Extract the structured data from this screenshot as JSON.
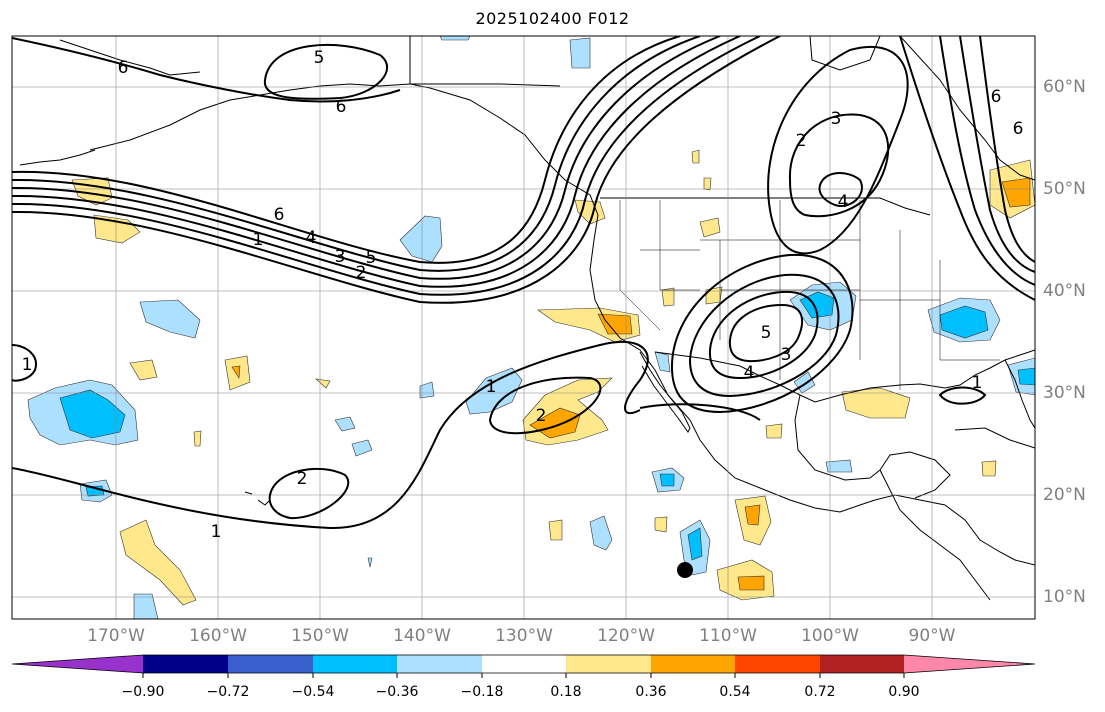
{
  "title": "2025102400 F012",
  "map": {
    "projection": "Plate Carree",
    "longitude_range": "180°W to 80°W",
    "latitude_range": "8°N to 65°N",
    "coastlines": true,
    "country_borders": true,
    "state_borders": true,
    "gridlines": true,
    "longitude_labels": [
      "170°W",
      "160°W",
      "150°W",
      "140°W",
      "130°W",
      "120°W",
      "110°W",
      "100°W",
      "90°W"
    ],
    "latitude_labels": [
      "60°N",
      "50°N",
      "40°N",
      "30°N",
      "20°N",
      "10°N"
    ],
    "label_color": "#808080",
    "contour_color": "#000000",
    "contour_labels": [
      "6",
      "5",
      "6",
      "6",
      "1",
      "4",
      "3",
      "5",
      "2",
      "2",
      "3",
      "4",
      "5",
      "3",
      "4",
      "1",
      "2",
      "1",
      "2",
      "1",
      "1",
      "6",
      "6"
    ],
    "marker": "black filled circle near 114°W, 13°N"
  },
  "colorbar": {
    "orientation": "horizontal",
    "extend": "both",
    "tick_labels": [
      "−0.90",
      "−0.72",
      "−0.54",
      "−0.36",
      "−0.18",
      "0.18",
      "0.36",
      "0.54",
      "0.72",
      "0.90"
    ],
    "colors": [
      "#9932CC",
      "#00008B",
      "#3A5FCD",
      "#00BFFF",
      "#ADDFFF",
      "#FFFFFF",
      "#FFE88C",
      "#FFA500",
      "#FF4500",
      "#B22222",
      "#FF88AA"
    ]
  }
}
